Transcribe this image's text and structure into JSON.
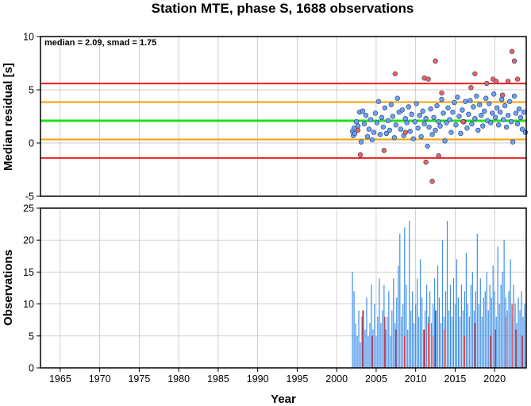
{
  "chart_data": [
    {
      "type": "scatter",
      "title": "Station MTE, phase S, 1688 observations",
      "ylabel": "Median residual [s]",
      "xlim": [
        1962.5,
        2024
      ],
      "ylim": [
        -5,
        10
      ],
      "y_ticks": [
        "10",
        "5",
        "0",
        "-5"
      ],
      "grid": true,
      "annotation": "median = 2.09, smad = 1.75",
      "reference_lines": [
        {
          "y": 5.59,
          "color": "#e8211d"
        },
        {
          "y": 3.84,
          "color": "#f2a100"
        },
        {
          "y": 2.09,
          "color": "#1fe01f"
        },
        {
          "y": 0.34,
          "color": "#f2a100"
        },
        {
          "y": -1.41,
          "color": "#e8211d"
        }
      ],
      "series": [
        {
          "color": "#6aa2f0",
          "points": [
            [
              2002.0,
              1.1
            ],
            [
              2002.1,
              0.7
            ],
            [
              2002.2,
              1.4
            ],
            [
              2002.3,
              0.9
            ],
            [
              2002.5,
              2.0
            ],
            [
              2002.7,
              1.6
            ],
            [
              2002.9,
              2.9
            ],
            [
              2003.1,
              0.1
            ],
            [
              2003.3,
              3.0
            ],
            [
              2003.5,
              1.8
            ],
            [
              2003.7,
              2.6
            ],
            [
              2003.9,
              0.6
            ],
            [
              2004.1,
              1.3
            ],
            [
              2004.3,
              2.2
            ],
            [
              2004.5,
              0.3
            ],
            [
              2004.7,
              1.0
            ],
            [
              2004.9,
              2.8
            ],
            [
              2005.1,
              1.9
            ],
            [
              2005.3,
              3.9
            ],
            [
              2005.5,
              0.8
            ],
            [
              2005.7,
              2.4
            ],
            [
              2005.9,
              1.5
            ],
            [
              2006.1,
              3.3
            ],
            [
              2006.3,
              0.9
            ],
            [
              2006.5,
              2.1
            ],
            [
              2006.7,
              1.2
            ],
            [
              2006.9,
              3.6
            ],
            [
              2007.1,
              2.5
            ],
            [
              2007.3,
              0.5
            ],
            [
              2007.5,
              1.7
            ],
            [
              2007.7,
              4.2
            ],
            [
              2007.9,
              2.9
            ],
            [
              2008.1,
              1.3
            ],
            [
              2008.3,
              3.1
            ],
            [
              2008.5,
              0.7
            ],
            [
              2008.7,
              2.3
            ],
            [
              2008.9,
              1.9
            ],
            [
              2009.1,
              3.4
            ],
            [
              2009.3,
              1.1
            ],
            [
              2009.5,
              2.7
            ],
            [
              2009.7,
              0.4
            ],
            [
              2009.9,
              2.0
            ],
            [
              2010.1,
              3.7
            ],
            [
              2010.3,
              1.4
            ],
            [
              2010.5,
              2.6
            ],
            [
              2010.7,
              0.6
            ],
            [
              2010.9,
              3.0
            ],
            [
              2011.1,
              1.8
            ],
            [
              2011.3,
              2.3
            ],
            [
              2011.5,
              -0.3
            ],
            [
              2011.7,
              1.5
            ],
            [
              2011.9,
              3.2
            ],
            [
              2012.1,
              0.8
            ],
            [
              2012.3,
              2.4
            ],
            [
              2012.5,
              1.2
            ],
            [
              2012.7,
              3.5
            ],
            [
              2012.9,
              2.0
            ],
            [
              2013.1,
              1.6
            ],
            [
              2013.3,
              4.1
            ],
            [
              2013.5,
              2.8
            ],
            [
              2013.7,
              0.2
            ],
            [
              2013.9,
              1.9
            ],
            [
              2014.1,
              3.3
            ],
            [
              2014.3,
              2.2
            ],
            [
              2014.5,
              1.0
            ],
            [
              2014.7,
              2.9
            ],
            [
              2014.9,
              3.8
            ],
            [
              2015.1,
              1.7
            ],
            [
              2015.3,
              4.3
            ],
            [
              2015.5,
              2.5
            ],
            [
              2015.7,
              0.9
            ],
            [
              2015.9,
              3.1
            ],
            [
              2016.1,
              2.0
            ],
            [
              2016.3,
              3.9
            ],
            [
              2016.5,
              1.4
            ],
            [
              2016.7,
              2.7
            ],
            [
              2016.9,
              4.0
            ],
            [
              2017.1,
              1.8
            ],
            [
              2017.3,
              3.4
            ],
            [
              2017.5,
              2.3
            ],
            [
              2017.7,
              4.4
            ],
            [
              2017.9,
              1.2
            ],
            [
              2018.1,
              3.6
            ],
            [
              2018.3,
              2.6
            ],
            [
              2018.5,
              1.6
            ],
            [
              2018.7,
              3.0
            ],
            [
              2018.9,
              4.2
            ],
            [
              2019.1,
              2.1
            ],
            [
              2019.3,
              3.7
            ],
            [
              2019.5,
              1.9
            ],
            [
              2019.7,
              2.8
            ],
            [
              2019.9,
              4.6
            ],
            [
              2020.1,
              2.4
            ],
            [
              2020.3,
              3.3
            ],
            [
              2020.5,
              1.7
            ],
            [
              2020.7,
              2.9
            ],
            [
              2020.9,
              4.1
            ],
            [
              2021.1,
              2.2
            ],
            [
              2021.3,
              3.5
            ],
            [
              2021.5,
              1.5
            ],
            [
              2021.7,
              2.6
            ],
            [
              2021.9,
              3.9
            ],
            [
              2022.1,
              2.0
            ],
            [
              2022.3,
              0.1
            ],
            [
              2022.5,
              4.4
            ],
            [
              2022.7,
              2.8
            ],
            [
              2022.9,
              1.8
            ],
            [
              2023.1,
              3.2
            ],
            [
              2023.3,
              2.4
            ],
            [
              2023.5,
              1.3
            ],
            [
              2023.7,
              2.9
            ],
            [
              2023.9,
              1.0
            ]
          ]
        },
        {
          "color": "#f0625a",
          "points": [
            [
              2002.7,
              1.2
            ],
            [
              2003.0,
              -1.1
            ],
            [
              2006.0,
              -0.7
            ],
            [
              2007.4,
              6.5
            ],
            [
              2008.7,
              1.0
            ],
            [
              2011.1,
              6.1
            ],
            [
              2011.3,
              -1.8
            ],
            [
              2011.6,
              6.0
            ],
            [
              2012.1,
              -3.6
            ],
            [
              2012.5,
              7.7
            ],
            [
              2012.9,
              -1.2
            ],
            [
              2013.3,
              4.7
            ],
            [
              2016.0,
              2.0
            ],
            [
              2017.0,
              5.2
            ],
            [
              2017.5,
              6.5
            ],
            [
              2019.0,
              5.6
            ],
            [
              2019.8,
              6.0
            ],
            [
              2020.2,
              5.8
            ],
            [
              2021.0,
              4.5
            ],
            [
              2021.7,
              5.8
            ],
            [
              2022.2,
              8.6
            ],
            [
              2022.5,
              7.7
            ],
            [
              2022.9,
              6.0
            ]
          ]
        }
      ]
    },
    {
      "type": "bar",
      "xlabel": "Year",
      "ylabel": "Observations",
      "xlim": [
        1962.5,
        2024
      ],
      "ylim": [
        0,
        25
      ],
      "x_ticks": [
        "1965",
        "1970",
        "1975",
        "1980",
        "1985",
        "1990",
        "1995",
        "2000",
        "2005",
        "2010",
        "2015",
        "2020"
      ],
      "y_ticks": [
        "25",
        "20",
        "15",
        "10",
        "5",
        "0"
      ],
      "grid": true,
      "series": [
        {
          "color": "#3d8fe8",
          "x": [
            2002.0,
            2002.2,
            2002.4,
            2002.6,
            2002.8,
            2003.0,
            2003.2,
            2003.4,
            2003.6,
            2003.8,
            2004.0,
            2004.2,
            2004.4,
            2004.6,
            2004.8,
            2005.0,
            2005.2,
            2005.4,
            2005.6,
            2005.8,
            2006.0,
            2006.2,
            2006.4,
            2006.6,
            2006.8,
            2007.0,
            2007.2,
            2007.4,
            2007.6,
            2007.8,
            2008.0,
            2008.2,
            2008.4,
            2008.6,
            2008.8,
            2009.0,
            2009.2,
            2009.4,
            2009.6,
            2009.8,
            2010.0,
            2010.2,
            2010.4,
            2010.6,
            2010.8,
            2011.0,
            2011.2,
            2011.4,
            2011.6,
            2011.8,
            2012.0,
            2012.2,
            2012.4,
            2012.6,
            2012.8,
            2013.0,
            2013.2,
            2013.4,
            2013.6,
            2013.8,
            2014.0,
            2014.2,
            2014.4,
            2014.6,
            2014.8,
            2015.0,
            2015.2,
            2015.4,
            2015.6,
            2015.8,
            2016.0,
            2016.2,
            2016.4,
            2016.6,
            2016.8,
            2017.0,
            2017.2,
            2017.4,
            2017.6,
            2017.8,
            2018.0,
            2018.2,
            2018.4,
            2018.6,
            2018.8,
            2019.0,
            2019.2,
            2019.4,
            2019.6,
            2019.8,
            2020.0,
            2020.2,
            2020.4,
            2020.6,
            2020.8,
            2021.0,
            2021.2,
            2021.4,
            2021.6,
            2021.8,
            2022.0,
            2022.2,
            2022.4,
            2022.6,
            2022.8,
            2023.0,
            2023.2,
            2023.4,
            2023.6,
            2023.8
          ],
          "values": [
            15,
            12,
            7,
            5,
            9,
            4,
            8,
            9,
            6,
            11,
            5,
            7,
            13,
            6,
            10,
            5,
            8,
            14,
            7,
            9,
            13,
            6,
            8,
            12,
            5,
            9,
            14,
            7,
            11,
            16,
            21,
            8,
            10,
            22,
            13,
            6,
            23,
            9,
            12,
            7,
            10,
            14,
            8,
            17,
            11,
            6,
            9,
            13,
            8,
            12,
            7,
            10,
            14,
            9,
            16,
            11,
            7,
            20,
            8,
            12,
            23,
            9,
            13,
            8,
            14,
            10,
            17,
            11,
            8,
            13,
            9,
            12,
            18,
            10,
            8,
            13,
            15,
            9,
            12,
            21,
            10,
            14,
            8,
            11,
            12,
            15,
            9,
            13,
            11,
            16,
            12,
            8,
            19,
            10,
            13,
            15,
            20,
            11,
            9,
            12,
            17,
            8,
            13,
            10,
            7,
            11,
            9,
            12,
            8,
            10
          ]
        },
        {
          "color": "#e8211d",
          "x": [
            2003.3,
            2004.5,
            2006.1,
            2007.5,
            2008.6,
            2011.1,
            2011.6,
            2012.2,
            2012.5,
            2013.6,
            2016.2,
            2017.5,
            2019.5,
            2020.1,
            2021.4,
            2022.2,
            2022.7,
            2023.5
          ],
          "values": [
            9,
            5,
            8,
            6,
            5,
            6,
            7,
            5,
            9,
            6,
            5,
            7,
            5,
            6,
            8,
            10,
            6,
            5
          ]
        }
      ]
    }
  ]
}
